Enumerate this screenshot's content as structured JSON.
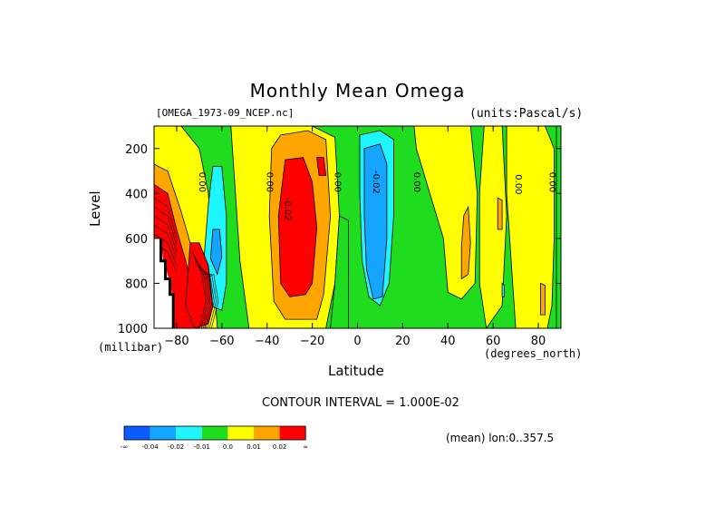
{
  "chart_data": {
    "type": "heatmap",
    "title": "Monthly Mean Omega",
    "dataset": "[OMEGA_1973-09_NCEP.nc]",
    "units_label": "(units:Pascal/s)",
    "xlabel": "Latitude",
    "x_unit": "(degrees_north)",
    "ylabel": "Level",
    "y_unit": "(millibar)",
    "xlim": [
      -90,
      90
    ],
    "ylim": [
      1000,
      100
    ],
    "x_ticks": [
      -80,
      -60,
      -40,
      -20,
      0,
      20,
      40,
      60,
      80
    ],
    "y_ticks": [
      200,
      400,
      600,
      800,
      1000
    ],
    "contour_interval_text": "CONTOUR INTERVAL = 1.000E-02",
    "footer_text": "(mean) lon:0..357.5",
    "contour_labels": [
      {
        "text": "0.00",
        "lat": -70,
        "level": 350
      },
      {
        "text": "0.00",
        "lat": -40,
        "level": 350
      },
      {
        "text": "-0.02",
        "lat": -32,
        "level": 470
      },
      {
        "text": "0.00",
        "lat": -10,
        "level": 350
      },
      {
        "text": "-0.02",
        "lat": 7,
        "level": 350
      },
      {
        "text": "0.00",
        "lat": 25,
        "level": 350
      },
      {
        "text": "0.00",
        "lat": 70,
        "level": 360
      },
      {
        "text": "0.00",
        "lat": 85,
        "level": 350
      }
    ],
    "colorbar": {
      "colors": [
        "#0a5cff",
        "#14a5ff",
        "#1ff5ff",
        "#1fdc1f",
        "#ffff00",
        "#ffa500",
        "#ff0000"
      ],
      "labels": [
        "-∞",
        "-0.04",
        "-0.02",
        "-0.01",
        "0.0",
        "0.01",
        "0.02",
        "∞"
      ]
    },
    "regions": [
      {
        "color": "#1fdc1f",
        "pts": [
          [
            -90,
            100
          ],
          [
            90,
            100
          ],
          [
            90,
            1000
          ],
          [
            -90,
            1000
          ]
        ]
      },
      {
        "color": "#ffff00",
        "pts": [
          [
            -90,
            100
          ],
          [
            -78,
            100
          ],
          [
            -70,
            200
          ],
          [
            -66,
            400
          ],
          [
            -64,
            700
          ],
          [
            -62,
            1000
          ],
          [
            -90,
            1000
          ]
        ]
      },
      {
        "color": "#ffa500",
        "pts": [
          [
            -90,
            270
          ],
          [
            -84,
            300
          ],
          [
            -78,
            480
          ],
          [
            -74,
            620
          ],
          [
            -70,
            800
          ],
          [
            -67,
            1000
          ],
          [
            -90,
            1000
          ]
        ]
      },
      {
        "color": "#ff0000",
        "pts": [
          [
            -90,
            360
          ],
          [
            -84,
            400
          ],
          [
            -80,
            560
          ],
          [
            -76,
            700
          ],
          [
            -72,
            860
          ],
          [
            -70,
            1000
          ],
          [
            -90,
            1000
          ]
        ]
      },
      {
        "color": "#ffff00",
        "pts": [
          [
            -56,
            100
          ],
          [
            -20,
            100
          ],
          [
            -10,
            150
          ],
          [
            -8,
            500
          ],
          [
            -10,
            800
          ],
          [
            -14,
            1000
          ],
          [
            -48,
            1000
          ],
          [
            -52,
            700
          ],
          [
            -54,
            400
          ]
        ]
      },
      {
        "color": "#ffa500",
        "pts": [
          [
            -34,
            140
          ],
          [
            -22,
            120
          ],
          [
            -14,
            160
          ],
          [
            -12,
            500
          ],
          [
            -15,
            850
          ],
          [
            -18,
            960
          ],
          [
            -32,
            960
          ],
          [
            -37,
            880
          ],
          [
            -39,
            500
          ],
          [
            -38,
            200
          ]
        ]
      },
      {
        "color": "#ff0000",
        "pts": [
          [
            -32,
            250
          ],
          [
            -24,
            240
          ],
          [
            -20,
            350
          ],
          [
            -18,
            550
          ],
          [
            -20,
            800
          ],
          [
            -23,
            850
          ],
          [
            -30,
            860
          ],
          [
            -34,
            800
          ],
          [
            -35,
            500
          ]
        ]
      },
      {
        "color": "#ff0000",
        "pts": [
          [
            -18,
            240
          ],
          [
            -15,
            240
          ],
          [
            -14,
            320
          ],
          [
            -17,
            320
          ]
        ]
      },
      {
        "color": "#ffff00",
        "pts": [
          [
            25,
            100
          ],
          [
            50,
            100
          ],
          [
            53,
            400
          ],
          [
            52,
            800
          ],
          [
            46,
            870
          ],
          [
            40,
            840
          ],
          [
            38,
            600
          ],
          [
            32,
            400
          ],
          [
            26,
            200
          ]
        ]
      },
      {
        "color": "#ffff00",
        "pts": [
          [
            56,
            100
          ],
          [
            64,
            100
          ],
          [
            66,
            500
          ],
          [
            64,
            900
          ],
          [
            57,
            1000
          ],
          [
            54,
            800
          ],
          [
            54,
            400
          ]
        ]
      },
      {
        "color": "#ffff00",
        "pts": [
          [
            66,
            100
          ],
          [
            83,
            100
          ],
          [
            87,
            200
          ],
          [
            87,
            600
          ],
          [
            86,
            900
          ],
          [
            84,
            1000
          ],
          [
            70,
            1000
          ],
          [
            68,
            700
          ],
          [
            66,
            400
          ]
        ]
      },
      {
        "color": "#ffa500",
        "pts": [
          [
            47,
            500
          ],
          [
            49,
            460
          ],
          [
            50,
            620
          ],
          [
            49,
            760
          ],
          [
            46,
            780
          ],
          [
            46,
            640
          ]
        ]
      },
      {
        "color": "#ffa500",
        "pts": [
          [
            62,
            420
          ],
          [
            64,
            430
          ],
          [
            64,
            560
          ],
          [
            62,
            560
          ]
        ]
      },
      {
        "color": "#ffa500",
        "pts": [
          [
            81,
            800
          ],
          [
            83,
            810
          ],
          [
            83,
            940
          ],
          [
            81,
            940
          ]
        ]
      },
      {
        "color": "#1fdc1f",
        "pts": [
          [
            88,
            100
          ],
          [
            90,
            100
          ],
          [
            90,
            1000
          ],
          [
            88,
            1000
          ]
        ]
      },
      {
        "color": "#1fdc1f",
        "pts": [
          [
            -8,
            500
          ],
          [
            -4,
            520
          ],
          [
            -4,
            1000
          ],
          [
            -12,
            1000
          ],
          [
            -10,
            800
          ]
        ]
      },
      {
        "color": "#1ff5ff",
        "pts": [
          [
            -64,
            280
          ],
          [
            -60,
            280
          ],
          [
            -58,
            500
          ],
          [
            -58,
            800
          ],
          [
            -60,
            920
          ],
          [
            -65,
            900
          ],
          [
            -68,
            700
          ],
          [
            -66,
            450
          ]
        ]
      },
      {
        "color": "#14a5ff",
        "pts": [
          [
            -64,
            560
          ],
          [
            -61,
            560
          ],
          [
            -60,
            680
          ],
          [
            -62,
            760
          ],
          [
            -65,
            690
          ]
        ]
      },
      {
        "color": "#1ff5ff",
        "pts": [
          [
            1,
            140
          ],
          [
            10,
            120
          ],
          [
            16,
            160
          ],
          [
            16,
            500
          ],
          [
            14,
            800
          ],
          [
            10,
            900
          ],
          [
            5,
            860
          ],
          [
            2,
            700
          ],
          [
            1,
            400
          ]
        ]
      },
      {
        "color": "#14a5ff",
        "pts": [
          [
            3,
            200
          ],
          [
            10,
            180
          ],
          [
            13,
            270
          ],
          [
            13,
            600
          ],
          [
            11,
            860
          ],
          [
            7,
            870
          ],
          [
            4,
            740
          ],
          [
            3,
            500
          ]
        ]
      },
      {
        "color": "#1ff5ff",
        "pts": [
          [
            64,
            800
          ],
          [
            65,
            810
          ],
          [
            65,
            860
          ],
          [
            64,
            860
          ]
        ]
      }
    ],
    "southern_red_lobe": {
      "color": "#ff0000",
      "pts": [
        [
          -74,
          620
        ],
        [
          -70,
          620
        ],
        [
          -66,
          720
        ],
        [
          -64,
          900
        ],
        [
          -66,
          980
        ],
        [
          -72,
          1000
        ],
        [
          -76,
          900
        ]
      ]
    },
    "missing_data": {
      "color": "#ffffff",
      "pts": [
        [
          -90,
          600
        ],
        [
          -87,
          600
        ],
        [
          -86,
          700
        ],
        [
          -84,
          760
        ],
        [
          -82,
          850
        ],
        [
          -81,
          1000
        ],
        [
          -90,
          1000
        ]
      ]
    }
  }
}
